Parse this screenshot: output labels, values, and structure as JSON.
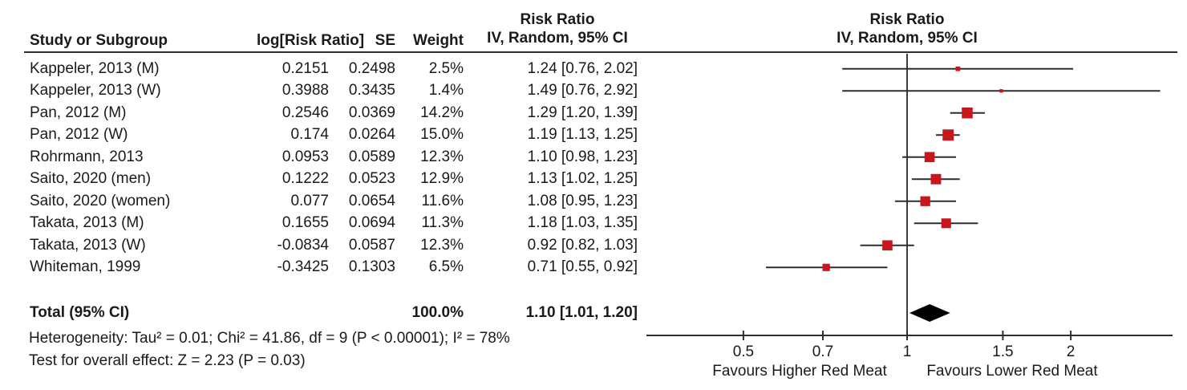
{
  "chart_data": {
    "type": "forest",
    "title_column_headers": {
      "study": "Study or Subgroup",
      "log_rr": "log[Risk Ratio]",
      "se": "SE",
      "weight": "Weight",
      "effect_line1": "Risk Ratio",
      "effect_line2": "IV, Random, 95% CI"
    },
    "x_axis": {
      "scale": "log",
      "ticks": [
        0.5,
        0.7,
        1,
        1.5,
        2
      ],
      "tick_labels": [
        "0.5",
        "0.7",
        "1",
        "1.5",
        "2"
      ]
    },
    "studies": [
      {
        "name": "Kappeler, 2013 (M)",
        "log_rr": "0.2151",
        "se": "0.2498",
        "weight": "2.5%",
        "weight_pct": 2.5,
        "rr": 1.24,
        "ci_low": 0.76,
        "ci_high": 2.02,
        "ci_text": "1.24 [0.76, 2.02]"
      },
      {
        "name": "Kappeler, 2013 (W)",
        "log_rr": "0.3988",
        "se": "0.3435",
        "weight": "1.4%",
        "weight_pct": 1.4,
        "rr": 1.49,
        "ci_low": 0.76,
        "ci_high": 2.92,
        "ci_text": "1.49 [0.76, 2.92]"
      },
      {
        "name": "Pan, 2012 (M)",
        "log_rr": "0.2546",
        "se": "0.0369",
        "weight": "14.2%",
        "weight_pct": 14.2,
        "rr": 1.29,
        "ci_low": 1.2,
        "ci_high": 1.39,
        "ci_text": "1.29 [1.20, 1.39]"
      },
      {
        "name": "Pan, 2012 (W)",
        "log_rr": "0.174",
        "se": "0.0264",
        "weight": "15.0%",
        "weight_pct": 15.0,
        "rr": 1.19,
        "ci_low": 1.13,
        "ci_high": 1.25,
        "ci_text": "1.19 [1.13, 1.25]"
      },
      {
        "name": "Rohrmann, 2013",
        "log_rr": "0.0953",
        "se": "0.0589",
        "weight": "12.3%",
        "weight_pct": 12.3,
        "rr": 1.1,
        "ci_low": 0.98,
        "ci_high": 1.23,
        "ci_text": "1.10 [0.98, 1.23]"
      },
      {
        "name": "Saito, 2020 (men)",
        "log_rr": "0.1222",
        "se": "0.0523",
        "weight": "12.9%",
        "weight_pct": 12.9,
        "rr": 1.13,
        "ci_low": 1.02,
        "ci_high": 1.25,
        "ci_text": "1.13 [1.02, 1.25]"
      },
      {
        "name": "Saito, 2020 (women)",
        "log_rr": "0.077",
        "se": "0.0654",
        "weight": "11.6%",
        "weight_pct": 11.6,
        "rr": 1.08,
        "ci_low": 0.95,
        "ci_high": 1.23,
        "ci_text": "1.08 [0.95, 1.23]"
      },
      {
        "name": "Takata, 2013 (M)",
        "log_rr": "0.1655",
        "se": "0.0694",
        "weight": "11.3%",
        "weight_pct": 11.3,
        "rr": 1.18,
        "ci_low": 1.03,
        "ci_high": 1.35,
        "ci_text": "1.18 [1.03, 1.35]"
      },
      {
        "name": "Takata, 2013 (W)",
        "log_rr": "-0.0834",
        "se": "0.0587",
        "weight": "12.3%",
        "weight_pct": 12.3,
        "rr": 0.92,
        "ci_low": 0.82,
        "ci_high": 1.03,
        "ci_text": "0.92 [0.82, 1.03]"
      },
      {
        "name": "Whiteman, 1999",
        "log_rr": "-0.3425",
        "se": "0.1303",
        "weight": "6.5%",
        "weight_pct": 6.5,
        "rr": 0.71,
        "ci_low": 0.55,
        "ci_high": 0.92,
        "ci_text": "0.71 [0.55, 0.92]"
      }
    ],
    "total": {
      "label": "Total (95% CI)",
      "weight": "100.0%",
      "rr": 1.1,
      "ci_low": 1.01,
      "ci_high": 1.2,
      "ci_text": "1.10 [1.01, 1.20]"
    },
    "heterogeneity": "Heterogeneity: Tau² = 0.01; Chi² = 41.86, df = 9 (P < 0.00001); I² = 78%",
    "overall_effect": "Test for overall effect: Z = 2.23 (P = 0.03)",
    "favours_left": "Favours Higher Red Meat",
    "favours_right": "Favours Lower Red Meat",
    "colors": {
      "marker": "#C8171C",
      "line": "#2e2e2e",
      "diamond": "#000000"
    }
  }
}
